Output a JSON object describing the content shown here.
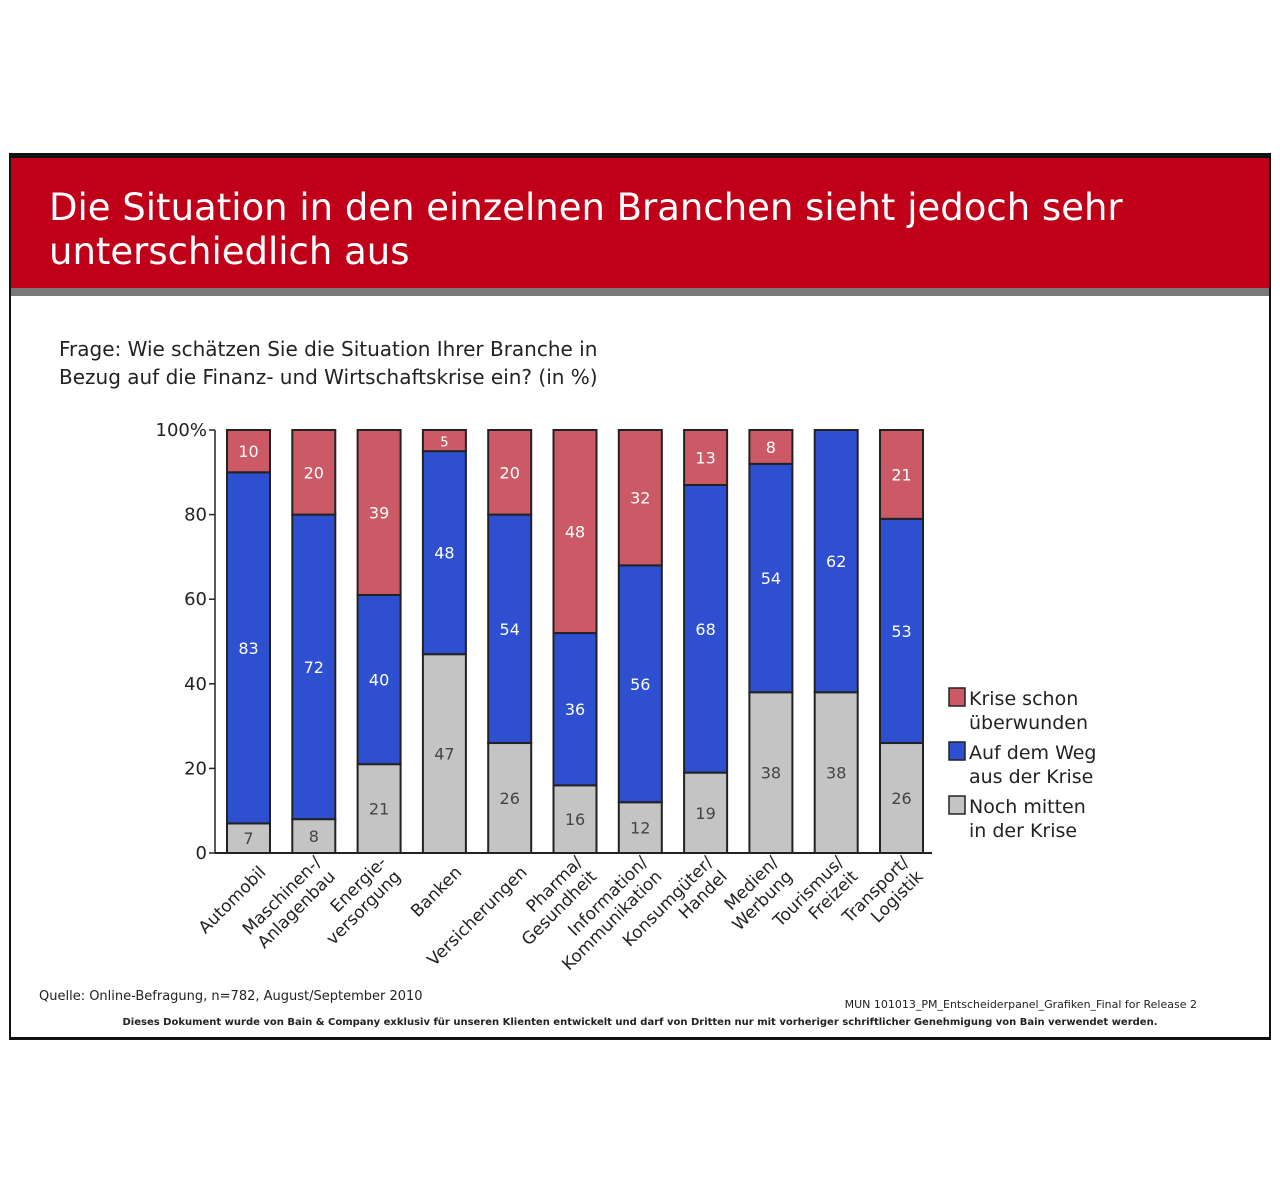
{
  "title": "Die Situation in den einzelnen Branchen sieht jedoch sehr unterschiedlich aus",
  "question_line1": "Frage: Wie schätzen Sie die Situation Ihrer Branche in",
  "question_line2": "Bezug auf die Finanz- und Wirtschaftskrise ein? (in %)",
  "source": "Quelle: Online-Befragung, n=782, August/September 2010",
  "footer_ref": "MUN   101013_PM_Entscheiderpanel_Grafiken_Final for Release   2",
  "disclaimer": "Dieses Dokument wurde von Bain & Company exklusiv für unseren Klienten entwickelt und darf von Dritten nur mit vorheriger schriftlicher Genehmigung von Bain verwendet werden.",
  "colors": {
    "title_bg": "#c00018",
    "series_overcome": "#cc5a66",
    "series_on_way": "#2d4fd0",
    "series_in_crisis": "#c4c4c4"
  },
  "chart_data": {
    "type": "bar",
    "stacked": true,
    "ylim": [
      0,
      100
    ],
    "yticks": [
      "0",
      "20",
      "40",
      "60",
      "80",
      "100%"
    ],
    "categories": [
      [
        "Automobil"
      ],
      [
        "Maschinen-/",
        "Anlagenbau"
      ],
      [
        "Energie-",
        "versorgung"
      ],
      [
        "Banken"
      ],
      [
        "Versicherungen"
      ],
      [
        "Pharma/",
        "Gesundheit"
      ],
      [
        "Information/",
        "Kommunikation"
      ],
      [
        "Konsumgüter/",
        "Handel"
      ],
      [
        "Medien/",
        "Werbung"
      ],
      [
        "Tourismus/",
        "Freizeit"
      ],
      [
        "Transport/",
        "Logistik"
      ]
    ],
    "series": [
      {
        "name": "Noch mitten in der Krise",
        "legend_lines": [
          "Noch mitten",
          "in der Krise"
        ],
        "color": "#c4c4c4",
        "values": [
          7,
          8,
          21,
          47,
          26,
          16,
          12,
          19,
          38,
          38,
          26
        ]
      },
      {
        "name": "Auf dem Weg aus der Krise",
        "legend_lines": [
          "Auf dem Weg",
          "aus der Krise"
        ],
        "color": "#2d4fd0",
        "values": [
          83,
          72,
          40,
          48,
          54,
          36,
          56,
          68,
          54,
          62,
          53
        ]
      },
      {
        "name": "Krise schon überwunden",
        "legend_lines": [
          "Krise schon",
          "überwunden"
        ],
        "color": "#cc5a66",
        "values": [
          10,
          20,
          39,
          5,
          20,
          48,
          32,
          13,
          8,
          null,
          21
        ]
      }
    ],
    "legend_position": "right",
    "grid": false
  }
}
